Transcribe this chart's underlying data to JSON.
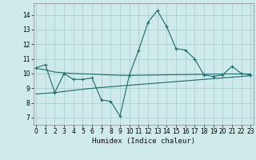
{
  "title": "",
  "xlabel": "Humidex (Indice chaleur)",
  "ylabel": "",
  "bg_color": "#ceeaea",
  "grid_color": "#aacece",
  "line_color": "#1a6b6b",
  "x_ticks": [
    0,
    1,
    2,
    3,
    4,
    5,
    6,
    7,
    8,
    9,
    10,
    11,
    12,
    13,
    14,
    15,
    16,
    17,
    18,
    19,
    20,
    21,
    22,
    23
  ],
  "y_ticks": [
    7,
    8,
    9,
    10,
    11,
    12,
    13,
    14
  ],
  "ylim": [
    6.5,
    14.8
  ],
  "xlim": [
    -0.3,
    23.3
  ],
  "series1_x": [
    0,
    1,
    2,
    3,
    4,
    5,
    6,
    7,
    8,
    9,
    10,
    11,
    12,
    13,
    14,
    15,
    16,
    17,
    18,
    19,
    20,
    21,
    22,
    23
  ],
  "series1_y": [
    10.4,
    10.6,
    8.7,
    10.0,
    9.6,
    9.6,
    9.7,
    8.2,
    8.1,
    7.1,
    9.9,
    11.6,
    13.5,
    14.3,
    13.2,
    11.7,
    11.6,
    11.0,
    9.9,
    9.8,
    9.9,
    10.5,
    10.0,
    9.9
  ],
  "series2_x": [
    0,
    1,
    2,
    3,
    4,
    5,
    6,
    7,
    8,
    9,
    10,
    11,
    12,
    13,
    14,
    15,
    16,
    17,
    18,
    19,
    20,
    21,
    22,
    23
  ],
  "series2_y": [
    10.35,
    10.25,
    10.1,
    10.05,
    10.0,
    9.98,
    9.96,
    9.93,
    9.9,
    9.88,
    9.87,
    9.88,
    9.89,
    9.9,
    9.91,
    9.92,
    9.93,
    9.94,
    9.95,
    9.96,
    9.97,
    9.97,
    9.97,
    9.97
  ],
  "series3_x": [
    0,
    1,
    2,
    3,
    4,
    5,
    6,
    7,
    8,
    9,
    10,
    11,
    12,
    13,
    14,
    15,
    16,
    17,
    18,
    19,
    20,
    21,
    22,
    23
  ],
  "series3_y": [
    8.6,
    8.65,
    8.7,
    8.78,
    8.85,
    8.92,
    8.99,
    9.05,
    9.1,
    9.15,
    9.2,
    9.25,
    9.3,
    9.35,
    9.4,
    9.45,
    9.5,
    9.55,
    9.6,
    9.65,
    9.7,
    9.75,
    9.8,
    9.85
  ]
}
